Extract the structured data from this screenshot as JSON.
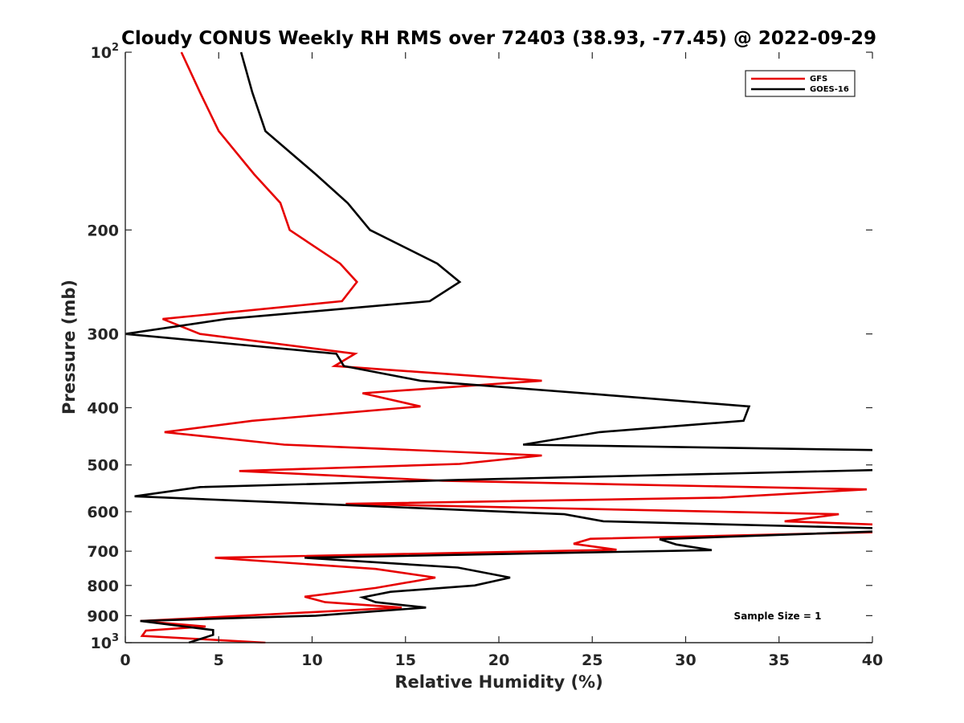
{
  "chart_data": {
    "type": "line",
    "title": "Cloudy CONUS Weekly RH RMS over 72403 (38.93, -77.45) @ 2022-09-29",
    "xlabel": "Relative Humidity (%)",
    "ylabel": "Pressure (mb)",
    "xlim": [
      0,
      40
    ],
    "ylim": [
      100,
      1000
    ],
    "yscale": "log",
    "y_reversed": true,
    "grid": false,
    "legend_position": "top-right",
    "x_ticks": [
      0,
      5,
      10,
      15,
      20,
      25,
      30,
      35,
      40
    ],
    "x_tick_labels": [
      "0",
      "5",
      "10",
      "15",
      "20",
      "25",
      "30",
      "35",
      "40"
    ],
    "y_ticks": [
      100,
      200,
      300,
      400,
      500,
      600,
      700,
      800,
      900,
      1000
    ],
    "y_tick_labels": [
      {
        "base": "10",
        "exp": "2"
      },
      {
        "base": "200",
        "exp": ""
      },
      {
        "base": "300",
        "exp": ""
      },
      {
        "base": "400",
        "exp": ""
      },
      {
        "base": "500",
        "exp": ""
      },
      {
        "base": "600",
        "exp": ""
      },
      {
        "base": "700",
        "exp": ""
      },
      {
        "base": "800",
        "exp": ""
      },
      {
        "base": "900",
        "exp": ""
      },
      {
        "base": "10",
        "exp": "3"
      }
    ],
    "annotation": "Sample Size = 1",
    "series": [
      {
        "name": "GFS",
        "color": "#e60000",
        "points": [
          [
            3.0,
            100
          ],
          [
            4.0,
            117
          ],
          [
            5.0,
            136
          ],
          [
            6.9,
            161
          ],
          [
            8.3,
            180
          ],
          [
            8.8,
            200
          ],
          [
            11.5,
            228
          ],
          [
            12.4,
            245
          ],
          [
            11.6,
            264
          ],
          [
            2.0,
            283
          ],
          [
            4.0,
            300
          ],
          [
            12.3,
            324
          ],
          [
            11.2,
            340
          ],
          [
            22.3,
            360
          ],
          [
            12.7,
            378
          ],
          [
            15.8,
            398
          ],
          [
            6.8,
            421
          ],
          [
            2.1,
            440
          ],
          [
            8.5,
            462
          ],
          [
            22.3,
            482
          ],
          [
            17.9,
            498
          ],
          [
            6.1,
            512
          ],
          [
            17.0,
            532
          ],
          [
            39.7,
            550
          ],
          [
            31.9,
            568
          ],
          [
            11.8,
            582
          ],
          [
            38.2,
            606
          ],
          [
            35.3,
            623
          ],
          [
            40.2,
            631
          ],
          [
            40.2,
            650
          ],
          [
            24.9,
            667
          ],
          [
            24.0,
            680
          ],
          [
            26.3,
            696
          ],
          [
            4.8,
            718
          ],
          [
            13.4,
            750
          ],
          [
            16.6,
            776
          ],
          [
            13.4,
            808
          ],
          [
            9.6,
            836
          ],
          [
            10.7,
            854
          ],
          [
            14.8,
            872
          ],
          [
            0.8,
            919
          ],
          [
            4.3,
            939
          ],
          [
            1.1,
            954
          ],
          [
            0.9,
            974
          ],
          [
            7.5,
            1000
          ]
        ]
      },
      {
        "name": "GOES-16",
        "color": "#000000",
        "points": [
          [
            6.2,
            100
          ],
          [
            6.8,
            117
          ],
          [
            7.5,
            136
          ],
          [
            10.2,
            161
          ],
          [
            11.9,
            180
          ],
          [
            13.1,
            200
          ],
          [
            16.7,
            228
          ],
          [
            17.9,
            245
          ],
          [
            16.3,
            264
          ],
          [
            5.4,
            283
          ],
          [
            0.0,
            300
          ],
          [
            11.3,
            324
          ],
          [
            11.7,
            340
          ],
          [
            15.8,
            360
          ],
          [
            25.4,
            380
          ],
          [
            33.4,
            398
          ],
          [
            33.1,
            421
          ],
          [
            25.4,
            440
          ],
          [
            21.3,
            462
          ],
          [
            40.2,
            472
          ],
          [
            40.2,
            510
          ],
          [
            18.0,
            530
          ],
          [
            4.0,
            545
          ],
          [
            0.5,
            565
          ],
          [
            12.0,
            585
          ],
          [
            23.5,
            606
          ],
          [
            25.6,
            623
          ],
          [
            40.2,
            640
          ],
          [
            40.2,
            648
          ],
          [
            28.6,
            668
          ],
          [
            29.5,
            682
          ],
          [
            31.4,
            697
          ],
          [
            9.6,
            718
          ],
          [
            17.8,
            746
          ],
          [
            20.6,
            776
          ],
          [
            18.7,
            800
          ],
          [
            14.2,
            820
          ],
          [
            12.7,
            838
          ],
          [
            13.4,
            854
          ],
          [
            16.1,
            872
          ],
          [
            10.2,
            900
          ],
          [
            0.8,
            919
          ],
          [
            4.7,
            952
          ],
          [
            4.7,
            970
          ],
          [
            3.4,
            1000
          ]
        ]
      }
    ]
  }
}
